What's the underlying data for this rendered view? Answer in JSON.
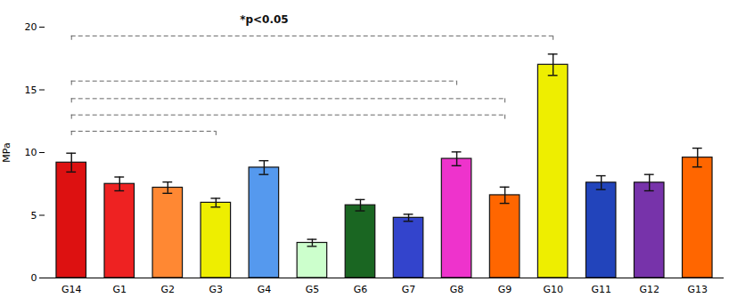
{
  "chart_data": {
    "type": "bar",
    "categories": [
      "G14",
      "G1",
      "G2",
      "G3",
      "G4",
      "G5",
      "G6",
      "G7",
      "G8",
      "G9",
      "G10",
      "G11",
      "G12",
      "G13"
    ],
    "values": [
      9.2,
      7.5,
      7.2,
      6.0,
      8.8,
      2.8,
      5.8,
      4.8,
      9.5,
      6.6,
      17.0,
      7.6,
      7.6,
      9.6
    ],
    "errors": [
      0.75,
      0.55,
      0.45,
      0.35,
      0.55,
      0.28,
      0.45,
      0.28,
      0.55,
      0.65,
      0.85,
      0.55,
      0.65,
      0.75
    ],
    "colors": [
      "#dd1111",
      "#ee2222",
      "#ff8833",
      "#eeee00",
      "#5599ee",
      "#ccffcc",
      "#1a6622",
      "#3344cc",
      "#ee33cc",
      "#ff6600",
      "#eeee00",
      "#2244bb",
      "#7733aa",
      "#ff6600"
    ],
    "ylabel": "MPa",
    "ylim": [
      0,
      20
    ],
    "yticks": [
      0,
      5,
      10,
      15,
      20
    ],
    "grid": false,
    "brackets": [
      {
        "y": 19.3,
        "from": "G14",
        "to": "G10"
      },
      {
        "y": 15.7,
        "from": "G14",
        "to": "G8"
      },
      {
        "y": 14.3,
        "from": "G14",
        "to": "G9"
      },
      {
        "y": 13.0,
        "from": "G14",
        "to": "G9"
      },
      {
        "y": 11.7,
        "from": "G14",
        "to": "G3"
      }
    ],
    "annotations": [
      {
        "text": "*p<0.05",
        "x": "G4",
        "y": 20.35
      }
    ]
  }
}
